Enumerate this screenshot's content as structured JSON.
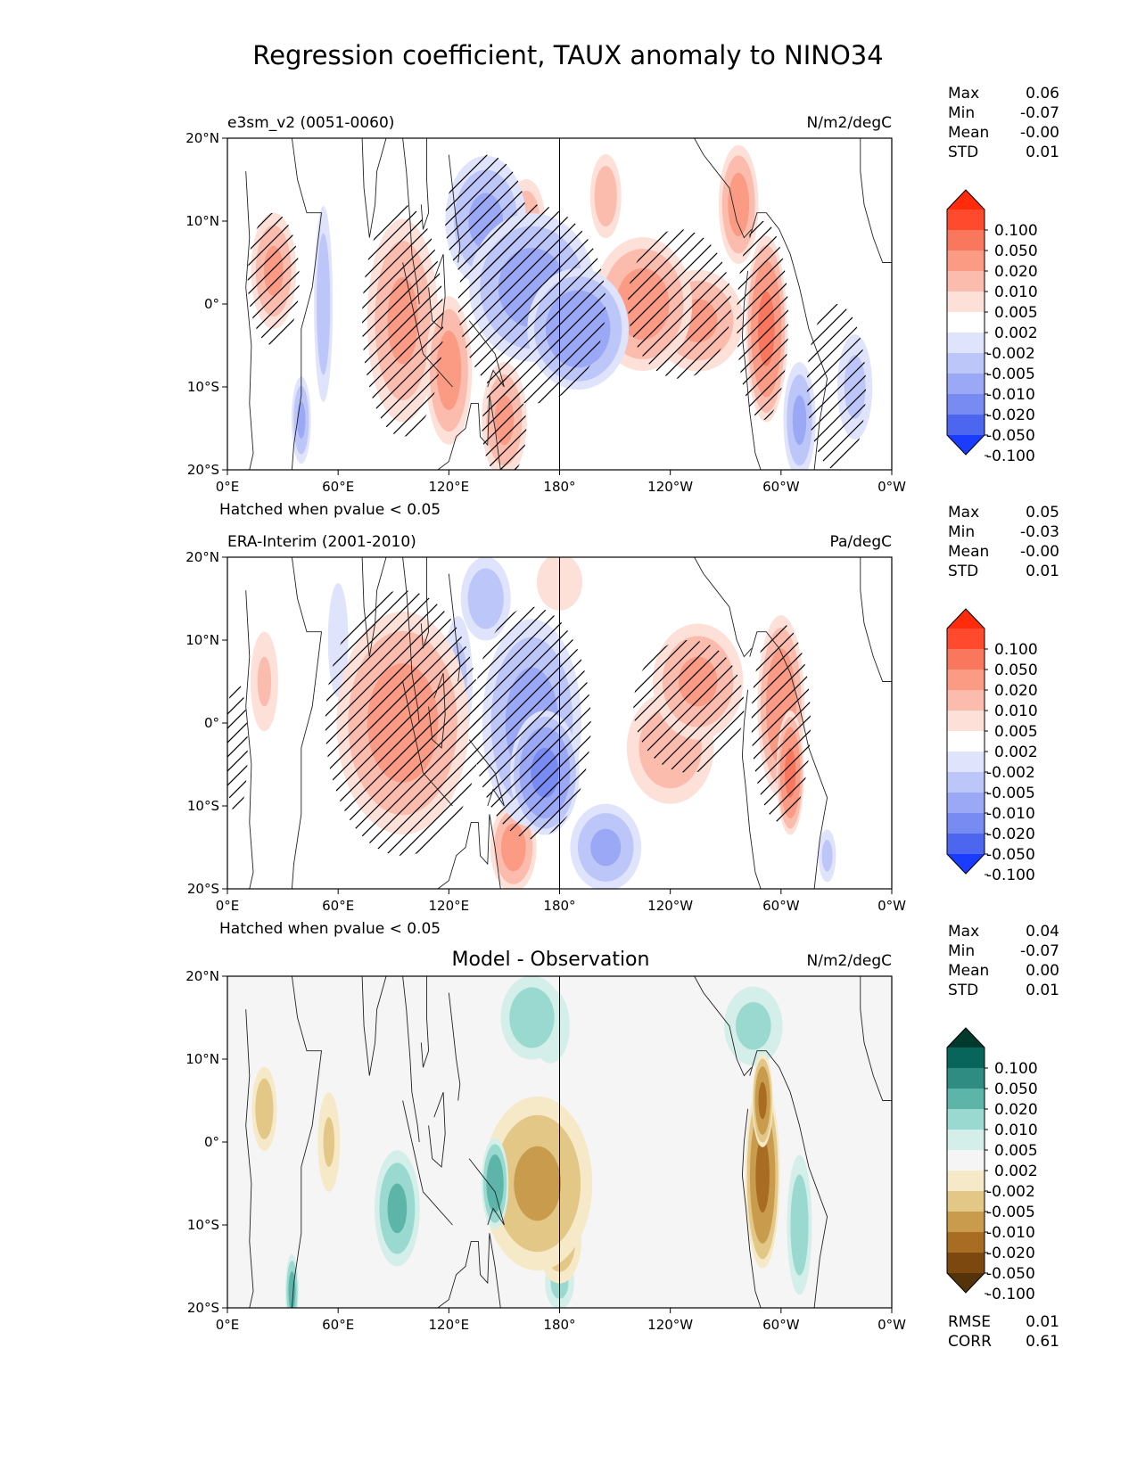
{
  "figure_title": "Regression coefficient, TAUX anomaly to NINO34",
  "hatch_note": "Hatched when pvalue < 0.05",
  "colorbar_ticks": [
    "0.100",
    "0.050",
    "0.020",
    "0.010",
    "0.005",
    "0.002",
    "-0.002",
    "-0.005",
    "-0.010",
    "-0.020",
    "-0.050",
    "-0.100"
  ],
  "colors": {
    "diverging_red_blue": [
      "#ff2b0a",
      "#ff4a2e",
      "#f9775c",
      "#fb9b84",
      "#fcbcad",
      "#fde0d8",
      "#ffffff",
      "#dfe3fb",
      "#bdc6f8",
      "#9aa8f5",
      "#778bf2",
      "#4d66f0",
      "#1a3cff"
    ],
    "diverging_brown_green": [
      "#003a2e",
      "#07655b",
      "#2e8c82",
      "#5db5aa",
      "#99d9cf",
      "#d4eee9",
      "#f5f5f5",
      "#f5e9c8",
      "#e3c786",
      "#c89c4c",
      "#a86d22",
      "#7c4810",
      "#55330a"
    ]
  },
  "chart_data": [
    {
      "type": "heatmap",
      "panel": "model",
      "title_left": "e3sm_v2 (0051-0060)",
      "title_right": "N/m2/degC",
      "title_center": "",
      "stats": [
        {
          "label": "Max",
          "value": "0.06"
        },
        {
          "label": "Min",
          "value": "-0.07"
        },
        {
          "label": "Mean",
          "value": "-0.00"
        },
        {
          "label": "STD",
          "value": "0.01"
        }
      ],
      "xticks": [
        "0°E",
        "60°E",
        "120°E",
        "180°",
        "120°W",
        "60°W",
        "0°W"
      ],
      "yticks": [
        "20°N",
        "10°N",
        "0°",
        "10°S",
        "20°S"
      ],
      "xlim": [
        0,
        360
      ],
      "ylim": [
        -20,
        20
      ],
      "colormap": "diverging_red_blue",
      "hatched": true
    },
    {
      "type": "heatmap",
      "panel": "observation",
      "title_left": "ERA-Interim (2001-2010)",
      "title_right": "Pa/degC",
      "title_center": "",
      "stats": [
        {
          "label": "Max",
          "value": "0.05"
        },
        {
          "label": "Min",
          "value": "-0.03"
        },
        {
          "label": "Mean",
          "value": "-0.00"
        },
        {
          "label": "STD",
          "value": "0.01"
        }
      ],
      "xticks": [
        "0°E",
        "60°E",
        "120°E",
        "180°",
        "120°W",
        "60°W",
        "0°W"
      ],
      "yticks": [
        "20°N",
        "10°N",
        "0°",
        "10°S",
        "20°S"
      ],
      "xlim": [
        0,
        360
      ],
      "ylim": [
        -20,
        20
      ],
      "colormap": "diverging_red_blue",
      "hatched": true
    },
    {
      "type": "heatmap",
      "panel": "difference",
      "title_left": "",
      "title_right": "N/m2/degC",
      "title_center": "Model - Observation",
      "stats": [
        {
          "label": "Max",
          "value": "0.04"
        },
        {
          "label": "Min",
          "value": "-0.07"
        },
        {
          "label": "Mean",
          "value": "0.00"
        },
        {
          "label": "STD",
          "value": "0.01"
        }
      ],
      "extra_stats": [
        {
          "label": "RMSE",
          "value": "0.01"
        },
        {
          "label": "CORR",
          "value": "0.61"
        }
      ],
      "xticks": [
        "0°E",
        "60°E",
        "120°E",
        "180°",
        "120°W",
        "60°W",
        "0°W"
      ],
      "yticks": [
        "20°N",
        "10°N",
        "0°",
        "10°S",
        "20°S"
      ],
      "xlim": [
        0,
        360
      ],
      "ylim": [
        -20,
        20
      ],
      "colormap": "diverging_brown_green",
      "hatched": false
    }
  ]
}
